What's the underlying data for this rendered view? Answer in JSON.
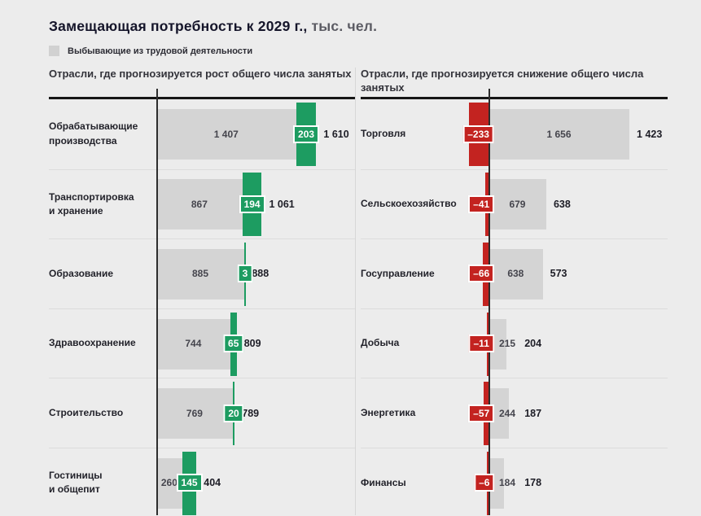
{
  "title": {
    "main": "Замещающая потребность к 2029 г.,",
    "unit": " тыс. чел."
  },
  "colors": {
    "green": "#1d9c61",
    "red": "#c32320",
    "gray_bar": "#d4d4d4",
    "background": "#ececec"
  },
  "chart_data": {
    "type": "bar",
    "orientation": "horizontal-diverging",
    "unit": "тыс. чел.",
    "legend_gray": "Выбывающие из трудовой деятельности",
    "legend_position": "top-left",
    "grid": "off",
    "panels": [
      {
        "title": "Отрасли, где прогнозируется рост общего числа занятых",
        "direction": "growth",
        "delta_color": "#1d9c61",
        "rows": [
          {
            "label": "Обрабатывающие\nпроизводства",
            "base": 1407,
            "delta": 203,
            "total": 1610,
            "base_text": "1 407",
            "delta_text": "203",
            "total_text": "1 610"
          },
          {
            "label": "Транспортировка\nи хранение",
            "base": 867,
            "delta": 194,
            "total": 1061,
            "base_text": "867",
            "delta_text": "194",
            "total_text": "1 061"
          },
          {
            "label": "Образование",
            "base": 885,
            "delta": 3,
            "total": 888,
            "base_text": "885",
            "delta_text": "3",
            "total_text": "888"
          },
          {
            "label": "Здравоохранение",
            "base": 744,
            "delta": 65,
            "total": 809,
            "base_text": "744",
            "delta_text": "65",
            "total_text": "809"
          },
          {
            "label": "Строительство",
            "base": 769,
            "delta": 20,
            "total": 789,
            "base_text": "769",
            "delta_text": "20",
            "total_text": "789"
          },
          {
            "label": "Гостиницы\nи общепит",
            "base": 260,
            "delta": 145,
            "total": 404,
            "base_text": "260",
            "delta_text": "145",
            "total_text": "404"
          }
        ]
      },
      {
        "title": "Отрасли, где прогнозируется снижение общего числа занятых",
        "direction": "decline",
        "delta_color": "#c32320",
        "rows": [
          {
            "label": "Торговля",
            "base": 1656,
            "delta": -233,
            "total": 1423,
            "base_text": "1 656",
            "delta_text": "–233",
            "total_text": "1 423"
          },
          {
            "label": "Сельскоехозяйство",
            "base": 679,
            "delta": -41,
            "total": 638,
            "base_text": "679",
            "delta_text": "–41",
            "total_text": "638"
          },
          {
            "label": "Госуправление",
            "base": 638,
            "delta": -66,
            "total": 573,
            "base_text": "638",
            "delta_text": "–66",
            "total_text": "573"
          },
          {
            "label": "Добыча",
            "base": 215,
            "delta": -11,
            "total": 204,
            "base_text": "215",
            "delta_text": "–11",
            "total_text": "204"
          },
          {
            "label": "Энергетика",
            "base": 244,
            "delta": -57,
            "total": 187,
            "base_text": "244",
            "delta_text": "–57",
            "total_text": "187"
          },
          {
            "label": "Финансы",
            "base": 184,
            "delta": -6,
            "total": 178,
            "base_text": "184",
            "delta_text": "–6",
            "total_text": "178"
          }
        ]
      }
    ]
  }
}
